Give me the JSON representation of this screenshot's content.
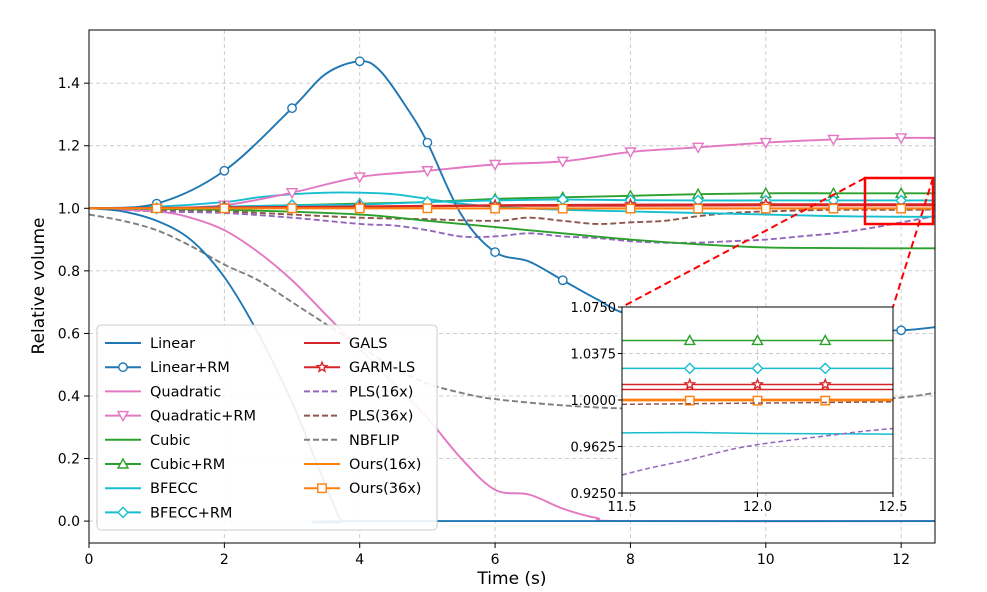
{
  "chart_data": {
    "type": "line",
    "title": "",
    "xlabel": "Time (s)",
    "ylabel": "Relative volume",
    "xlim": [
      0,
      12.5
    ],
    "ylim": [
      -0.07,
      1.57
    ],
    "xticks": [
      "0",
      "2",
      "4",
      "6",
      "8",
      "10",
      "12"
    ],
    "yticks": [
      "0.0",
      "0.2",
      "0.4",
      "0.6",
      "0.8",
      "1.0",
      "1.2",
      "1.4"
    ],
    "grid": true,
    "legend_position": "lower-left",
    "series": [
      {
        "name": "Linear",
        "color": "#1f77b4",
        "dash": "solid",
        "marker": "none",
        "x": [
          0,
          0.5,
          1,
          1.5,
          2,
          2.5,
          3,
          3.3,
          3.6,
          3.75,
          4,
          12.5
        ],
        "y": [
          1.0,
          0.99,
          0.96,
          0.9,
          0.78,
          0.6,
          0.38,
          0.22,
          0.06,
          0.0,
          0.0,
          0.0
        ]
      },
      {
        "name": "Linear+RM",
        "color": "#1f77b4",
        "dash": "solid",
        "marker": "circle",
        "x": [
          0,
          1,
          2,
          3,
          3.5,
          4,
          4.3,
          4.7,
          5,
          5.5,
          6,
          6.5,
          7,
          7.5,
          8,
          9,
          10,
          11,
          12,
          12.5
        ],
        "y": [
          1.0,
          1.015,
          1.12,
          1.32,
          1.43,
          1.47,
          1.44,
          1.32,
          1.21,
          0.98,
          0.86,
          0.83,
          0.77,
          0.71,
          0.66,
          0.64,
          0.62,
          0.61,
          0.61,
          0.62
        ]
      },
      {
        "name": "Quadratic",
        "color": "#e377c2",
        "dash": "solid",
        "marker": "none",
        "x": [
          0,
          1,
          1.5,
          2,
          2.5,
          3,
          3.5,
          4,
          4.5,
          5,
          5.5,
          6,
          6.5,
          7,
          7.5,
          8,
          12.5
        ],
        "y": [
          1.0,
          0.99,
          0.97,
          0.93,
          0.86,
          0.77,
          0.66,
          0.55,
          0.44,
          0.33,
          0.2,
          0.1,
          0.085,
          0.04,
          0.01,
          0.0,
          0.0
        ]
      },
      {
        "name": "Quadratic+RM",
        "color": "#e377c2",
        "dash": "solid",
        "marker": "down-triangle",
        "x": [
          0,
          1,
          2,
          3,
          4,
          5,
          6,
          7,
          8,
          9,
          10,
          11,
          12,
          12.5
        ],
        "y": [
          1.0,
          1.0,
          1.01,
          1.05,
          1.1,
          1.12,
          1.14,
          1.15,
          1.18,
          1.195,
          1.21,
          1.22,
          1.225,
          1.225
        ]
      },
      {
        "name": "Cubic",
        "color": "#2ca02c",
        "dash": "solid",
        "marker": "none",
        "x": [
          0,
          2,
          4,
          5,
          6,
          7,
          8,
          9,
          10,
          11,
          12,
          12.5
        ],
        "y": [
          1.0,
          0.995,
          0.98,
          0.96,
          0.94,
          0.92,
          0.9,
          0.885,
          0.875,
          0.873,
          0.872,
          0.872
        ]
      },
      {
        "name": "Cubic+RM",
        "color": "#2ca02c",
        "dash": "solid",
        "marker": "up-triangle",
        "x": [
          0,
          1,
          2,
          3,
          4,
          5,
          6,
          7,
          8,
          9,
          10,
          11,
          12,
          12.5
        ],
        "y": [
          1.0,
          1.0,
          1.005,
          1.01,
          1.015,
          1.02,
          1.03,
          1.035,
          1.04,
          1.045,
          1.048,
          1.048,
          1.048,
          1.048
        ]
      },
      {
        "name": "BFECC",
        "color": "#17becf",
        "dash": "solid",
        "marker": "none",
        "x": [
          0,
          1,
          2,
          2.5,
          3,
          3.5,
          4,
          4.5,
          5,
          5.5,
          6,
          7,
          8,
          9,
          10,
          11,
          12,
          12.5
        ],
        "y": [
          1.0,
          1.005,
          1.02,
          1.035,
          1.045,
          1.05,
          1.05,
          1.045,
          1.03,
          1.015,
          1.005,
          0.995,
          0.99,
          0.985,
          0.98,
          0.975,
          0.973,
          0.973
        ]
      },
      {
        "name": "BFECC+RM",
        "color": "#17becf",
        "dash": "solid",
        "marker": "diamond",
        "x": [
          0,
          1,
          2,
          3,
          4,
          5,
          6,
          7,
          8,
          9,
          10,
          11,
          12,
          12.5
        ],
        "y": [
          1.0,
          1.0,
          1.005,
          1.01,
          1.012,
          1.02,
          1.025,
          1.028,
          1.026,
          1.025,
          1.025,
          1.025,
          1.025,
          1.025
        ]
      },
      {
        "name": "GALS",
        "color": "#d62728",
        "dash": "solid",
        "marker": "none",
        "x": [
          0,
          2,
          4,
          6,
          8,
          10,
          12.5
        ],
        "y": [
          1.0,
          1.002,
          1.005,
          1.008,
          1.008,
          1.009,
          1.009
        ]
      },
      {
        "name": "GARM-LS",
        "color": "#d62728",
        "dash": "solid",
        "marker": "star",
        "x": [
          0,
          2,
          4,
          6,
          8,
          10,
          12.5
        ],
        "y": [
          1.0,
          1.003,
          1.006,
          1.01,
          1.012,
          1.013,
          1.013
        ]
      },
      {
        "name": "PLS(16x)",
        "color": "#9467bd",
        "dash": "dashed",
        "marker": "none",
        "x": [
          0,
          1,
          2,
          3,
          4,
          4.5,
          5,
          5.5,
          6,
          6.5,
          7,
          7.5,
          8,
          8.5,
          9,
          9.5,
          10,
          10.5,
          11,
          11.5,
          12,
          12.5
        ],
        "y": [
          1.0,
          0.99,
          0.985,
          0.97,
          0.95,
          0.945,
          0.93,
          0.91,
          0.91,
          0.92,
          0.91,
          0.905,
          0.895,
          0.89,
          0.89,
          0.895,
          0.9,
          0.91,
          0.92,
          0.935,
          0.955,
          0.975
        ]
      },
      {
        "name": "PLS(36x)",
        "color": "#8c564b",
        "dash": "dashed",
        "marker": "none",
        "x": [
          0,
          1,
          2,
          3,
          4,
          5,
          6,
          6.5,
          7,
          7.5,
          8,
          8.5,
          9,
          9.5,
          10,
          11,
          12,
          12.5
        ],
        "y": [
          1.0,
          0.995,
          0.99,
          0.98,
          0.97,
          0.965,
          0.96,
          0.97,
          0.96,
          0.95,
          0.955,
          0.96,
          0.975,
          0.985,
          0.99,
          0.995,
          0.995,
          0.996
        ]
      },
      {
        "name": "NBFLIP",
        "color": "#7f7f7f",
        "dash": "dashed",
        "marker": "none",
        "x": [
          0,
          0.5,
          1,
          1.5,
          2,
          2.5,
          3,
          3.5,
          4,
          4.5,
          5,
          5.5,
          6,
          7,
          8,
          9,
          10,
          11,
          12,
          12.5
        ],
        "y": [
          0.98,
          0.96,
          0.93,
          0.88,
          0.82,
          0.77,
          0.7,
          0.63,
          0.56,
          0.49,
          0.44,
          0.41,
          0.39,
          0.37,
          0.36,
          0.365,
          0.37,
          0.38,
          0.395,
          0.41
        ]
      },
      {
        "name": "Ours(16x)",
        "color": "#ff7f0e",
        "dash": "solid",
        "marker": "none",
        "x": [
          0,
          2,
          4,
          6,
          8,
          10,
          12.5
        ],
        "y": [
          1.0,
          1.0,
          1.0,
          1.0,
          1.0,
          1.0,
          1.0
        ]
      },
      {
        "name": "Ours(36x)",
        "color": "#ff7f0e",
        "dash": "solid",
        "marker": "square",
        "x": [
          0,
          1,
          2,
          3,
          4,
          5,
          6,
          7,
          8,
          9,
          10,
          11,
          12,
          12.5
        ],
        "y": [
          1.0,
          1.0,
          1.0,
          1.0,
          1.0,
          1.0,
          0.999,
          0.999,
          0.999,
          0.999,
          0.999,
          0.999,
          0.999,
          0.999
        ]
      }
    ],
    "inset": {
      "xlim": [
        11.5,
        12.5
      ],
      "ylim": [
        0.925,
        1.075
      ],
      "xticks": [
        "11.5",
        "12.0",
        "12.5"
      ],
      "yticks": [
        "0.9250",
        "0.9625",
        "1.0000",
        "1.0375",
        "1.0750"
      ],
      "series": [
        {
          "name": "Cubic+RM",
          "x": [
            11.5,
            12.5
          ],
          "y": [
            1.048,
            1.048
          ]
        },
        {
          "name": "BFECC+RM",
          "x": [
            11.5,
            12.5
          ],
          "y": [
            1.0255,
            1.0255
          ]
        },
        {
          "name": "GARM-LS",
          "x": [
            11.5,
            12.5
          ],
          "y": [
            1.0125,
            1.0125
          ]
        },
        {
          "name": "GALS",
          "x": [
            11.5,
            12.5
          ],
          "y": [
            1.0085,
            1.0085
          ]
        },
        {
          "name": "Ours(16x)",
          "x": [
            11.5,
            12.5
          ],
          "y": [
            1.0005,
            1.0005
          ]
        },
        {
          "name": "Ours(36x)",
          "x": [
            11.5,
            12.5
          ],
          "y": [
            0.9995,
            0.9995
          ]
        },
        {
          "name": "PLS(36x)",
          "x": [
            11.5,
            11.75,
            12.0,
            12.25,
            12.5
          ],
          "y": [
            0.9965,
            0.997,
            0.9975,
            0.998,
            0.9985
          ]
        },
        {
          "name": "BFECC",
          "x": [
            11.5,
            11.75,
            12.0,
            12.25,
            12.5
          ],
          "y": [
            0.9735,
            0.9738,
            0.973,
            0.9728,
            0.9725
          ]
        },
        {
          "name": "PLS(16x)",
          "x": [
            11.5,
            11.6,
            11.75,
            11.9,
            12.0,
            12.1,
            12.25,
            12.4,
            12.5
          ],
          "y": [
            0.9395,
            0.945,
            0.952,
            0.96,
            0.964,
            0.967,
            0.971,
            0.975,
            0.977
          ]
        }
      ]
    }
  }
}
